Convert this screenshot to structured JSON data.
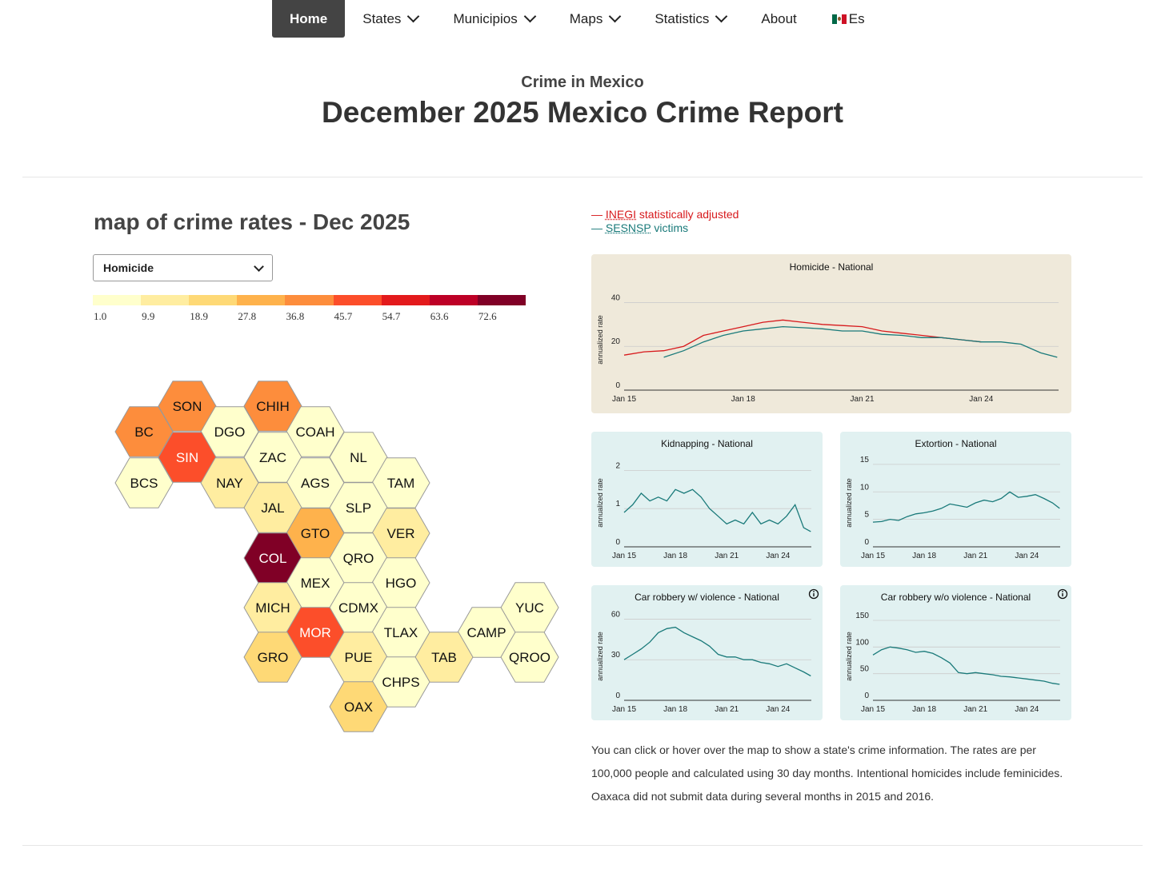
{
  "nav": {
    "items": [
      {
        "label": "Home",
        "active": true,
        "dropdown": false
      },
      {
        "label": "States",
        "active": false,
        "dropdown": true
      },
      {
        "label": "Municipios",
        "active": false,
        "dropdown": true
      },
      {
        "label": "Maps",
        "active": false,
        "dropdown": true
      },
      {
        "label": "Statistics",
        "active": false,
        "dropdown": true
      },
      {
        "label": "About",
        "active": false,
        "dropdown": false
      }
    ],
    "language": {
      "label": "Es",
      "icon": "mexico-flag-icon"
    }
  },
  "header": {
    "kicker": "Crime in Mexico",
    "title": "December 2025 Mexico Crime Report"
  },
  "map": {
    "heading": "map of crime rates - Dec 2025",
    "selected_crime": "Homicide",
    "legend": {
      "labels": [
        "1.0",
        "9.9",
        "18.9",
        "27.8",
        "36.8",
        "45.7",
        "54.7",
        "63.6",
        "72.6"
      ],
      "colors": [
        "#ffffcc",
        "#ffeda0",
        "#fed976",
        "#feb24c",
        "#fd8d3c",
        "#fc4e2a",
        "#e31a1c",
        "#bd0026",
        "#800026"
      ]
    },
    "states": [
      {
        "code": "SON",
        "level": 4
      },
      {
        "code": "CHIH",
        "level": 4
      },
      {
        "code": "BC",
        "level": 4
      },
      {
        "code": "DGO",
        "level": 0
      },
      {
        "code": "COAH",
        "level": 0
      },
      {
        "code": "BCS",
        "level": 0
      },
      {
        "code": "SIN",
        "level": 5
      },
      {
        "code": "ZAC",
        "level": 0
      },
      {
        "code": "NL",
        "level": 0
      },
      {
        "code": "NAY",
        "level": 1
      },
      {
        "code": "AGS",
        "level": 0
      },
      {
        "code": "TAM",
        "level": 0
      },
      {
        "code": "JAL",
        "level": 1
      },
      {
        "code": "SLP",
        "level": 0
      },
      {
        "code": "GTO",
        "level": 3
      },
      {
        "code": "VER",
        "level": 1
      },
      {
        "code": "COL",
        "level": 8
      },
      {
        "code": "QRO",
        "level": 0
      },
      {
        "code": "MEX",
        "level": 0
      },
      {
        "code": "HGO",
        "level": 0
      },
      {
        "code": "MICH",
        "level": 1
      },
      {
        "code": "CDMX",
        "level": 0
      },
      {
        "code": "YUC",
        "level": 0
      },
      {
        "code": "MOR",
        "level": 5
      },
      {
        "code": "TLAX",
        "level": 0
      },
      {
        "code": "CAMP",
        "level": 0
      },
      {
        "code": "GRO",
        "level": 2
      },
      {
        "code": "PUE",
        "level": 1
      },
      {
        "code": "TAB",
        "level": 1
      },
      {
        "code": "QROO",
        "level": 0
      },
      {
        "code": "CHPS",
        "level": 0
      },
      {
        "code": "OAX",
        "level": 2
      }
    ]
  },
  "series_key": {
    "inegi": {
      "dash": "—",
      "link": "INEGI",
      "text": " statistically adjusted",
      "color": "#d7191c"
    },
    "sesnsp": {
      "dash": "—",
      "link": "SESNSP",
      "text": " victims",
      "color": "#1a7a7a"
    }
  },
  "chart_data": [
    {
      "type": "line",
      "title": "Homicide - National",
      "ylabel": "annualized rate",
      "ylim": [
        0,
        46
      ],
      "yticks": [
        0,
        20,
        40
      ],
      "x_range": [
        "Jan 15",
        "Dec 25"
      ],
      "xticks": [
        "Jan 15",
        "Jan 18",
        "Jan 21",
        "Jan 24"
      ],
      "info_icon": false,
      "series": [
        {
          "name": "INEGI",
          "color": "#d7191c",
          "x": [
            "2015-01",
            "2015-07",
            "2016-01",
            "2016-07",
            "2017-01",
            "2017-07",
            "2018-01",
            "2018-07",
            "2019-01",
            "2019-07",
            "2020-01",
            "2020-07",
            "2021-01",
            "2021-07",
            "2022-01",
            "2022-07",
            "2023-01",
            "2023-07",
            "2024-01"
          ],
          "values": [
            16,
            17.5,
            18,
            20,
            25,
            27,
            29,
            31,
            32,
            31,
            30,
            29.5,
            29,
            27,
            26,
            25,
            24,
            23,
            22
          ]
        },
        {
          "name": "SESNSP",
          "color": "#1a7a7a",
          "x": [
            "2016-01",
            "2016-07",
            "2017-01",
            "2017-07",
            "2018-01",
            "2018-07",
            "2019-01",
            "2019-07",
            "2020-01",
            "2020-07",
            "2021-01",
            "2021-07",
            "2022-01",
            "2022-07",
            "2023-01",
            "2023-07",
            "2024-01",
            "2024-07",
            "2025-01",
            "2025-07",
            "2025-12"
          ],
          "values": [
            15,
            18,
            22,
            25,
            27,
            28,
            29,
            28.5,
            28,
            27,
            27,
            25.5,
            25,
            24,
            24,
            23,
            22,
            22,
            21,
            17,
            15
          ]
        }
      ]
    },
    {
      "type": "line",
      "title": "Kidnapping - National",
      "ylabel": "annualized rate",
      "ylim": [
        0,
        2.3
      ],
      "yticks": [
        0,
        1,
        2
      ],
      "xticks": [
        "Jan 15",
        "Jan 18",
        "Jan 21",
        "Jan 24"
      ],
      "info_icon": false,
      "series": [
        {
          "name": "SESNSP",
          "color": "#1a7a7a",
          "x": [
            "2015-01",
            "2015-07",
            "2016-01",
            "2016-07",
            "2017-01",
            "2017-07",
            "2018-01",
            "2018-07",
            "2019-01",
            "2019-07",
            "2020-01",
            "2020-07",
            "2021-01",
            "2021-07",
            "2022-01",
            "2022-07",
            "2023-01",
            "2023-07",
            "2024-01",
            "2024-07",
            "2025-01",
            "2025-07",
            "2025-12"
          ],
          "values": [
            0.9,
            1.1,
            1.4,
            1.2,
            1.3,
            1.2,
            1.5,
            1.4,
            1.5,
            1.3,
            1.0,
            0.8,
            0.6,
            0.7,
            0.6,
            0.9,
            0.6,
            0.7,
            0.6,
            0.8,
            1.1,
            0.5,
            0.4
          ]
        }
      ]
    },
    {
      "type": "line",
      "title": "Extortion - National",
      "ylabel": "annualized rate",
      "ylim": [
        0,
        16
      ],
      "yticks": [
        0,
        5,
        10,
        15
      ],
      "xticks": [
        "Jan 15",
        "Jan 18",
        "Jan 21",
        "Jan 24"
      ],
      "info_icon": false,
      "series": [
        {
          "name": "SESNSP",
          "color": "#1a7a7a",
          "x": [
            "2015-01",
            "2015-07",
            "2016-01",
            "2016-07",
            "2017-01",
            "2017-07",
            "2018-01",
            "2018-07",
            "2019-01",
            "2019-07",
            "2020-01",
            "2020-07",
            "2021-01",
            "2021-07",
            "2022-01",
            "2022-07",
            "2023-01",
            "2023-07",
            "2024-01",
            "2024-07",
            "2025-01",
            "2025-07",
            "2025-12"
          ],
          "values": [
            4.5,
            4.6,
            5.0,
            4.8,
            5.5,
            6.0,
            6.2,
            6.5,
            7.0,
            7.8,
            7.5,
            7.2,
            8.0,
            8.5,
            8.2,
            8.8,
            10.0,
            9.0,
            9.2,
            9.5,
            8.8,
            8.0,
            7.0
          ]
        }
      ]
    },
    {
      "type": "line",
      "title": "Car robbery w/ violence - National",
      "ylabel": "annualized rate",
      "ylim": [
        0,
        65
      ],
      "yticks": [
        0,
        30,
        60
      ],
      "xticks": [
        "Jan 15",
        "Jan 18",
        "Jan 21",
        "Jan 24"
      ],
      "info_icon": true,
      "series": [
        {
          "name": "SESNSP",
          "color": "#1a7a7a",
          "x": [
            "2015-01",
            "2015-07",
            "2016-01",
            "2016-07",
            "2017-01",
            "2017-07",
            "2018-01",
            "2018-07",
            "2019-01",
            "2019-07",
            "2020-01",
            "2020-07",
            "2021-01",
            "2021-07",
            "2022-01",
            "2022-07",
            "2023-01",
            "2023-07",
            "2024-01",
            "2024-07",
            "2025-01",
            "2025-07",
            "2025-12"
          ],
          "values": [
            30,
            34,
            38,
            43,
            50,
            53,
            54,
            50,
            47,
            44,
            40,
            34,
            32,
            32,
            30,
            30,
            28,
            27,
            25,
            27,
            24,
            21,
            18
          ]
        }
      ]
    },
    {
      "type": "line",
      "title": "Car robbery w/o violence - National",
      "ylabel": "annualized rate",
      "ylim": [
        0,
        165
      ],
      "yticks": [
        0,
        50,
        100,
        150
      ],
      "xticks": [
        "Jan 15",
        "Jan 18",
        "Jan 21",
        "Jan 24"
      ],
      "info_icon": true,
      "series": [
        {
          "name": "SESNSP",
          "color": "#1a7a7a",
          "x": [
            "2015-01",
            "2015-07",
            "2016-01",
            "2016-07",
            "2017-01",
            "2017-07",
            "2018-01",
            "2018-07",
            "2019-01",
            "2019-07",
            "2020-01",
            "2020-07",
            "2021-01",
            "2021-07",
            "2022-01",
            "2022-07",
            "2023-01",
            "2023-07",
            "2024-01",
            "2024-07",
            "2025-01",
            "2025-07",
            "2025-12"
          ],
          "values": [
            85,
            95,
            100,
            98,
            95,
            90,
            92,
            88,
            80,
            70,
            52,
            50,
            52,
            50,
            48,
            45,
            44,
            42,
            40,
            38,
            36,
            32,
            30
          ]
        }
      ]
    }
  ],
  "note": "You can click or hover over the map to show a state's crime information. The rates are per 100,000 people and calculated using 30 day months. Intentional homicides include feminicides. Oaxaca did not submit data during several months in 2015 and 2016."
}
